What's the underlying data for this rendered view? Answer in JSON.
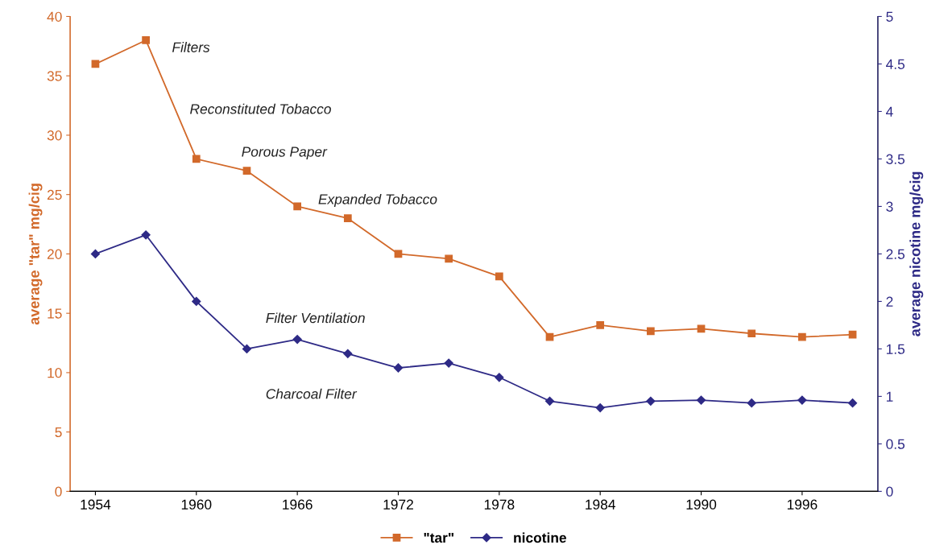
{
  "chart_data": {
    "type": "line",
    "x": [
      1954,
      1957,
      1960,
      1963,
      1966,
      1969,
      1972,
      1975,
      1978,
      1981,
      1984,
      1987,
      1990,
      1993,
      1996,
      1999
    ],
    "series": [
      {
        "name": "\"tar\"",
        "color": "#d2692a",
        "marker": "square",
        "values": [
          36,
          38,
          28,
          27,
          24,
          23,
          20,
          19.6,
          18.1,
          13,
          14,
          13.5,
          13.7,
          13.3,
          13,
          13.2
        ]
      },
      {
        "name": "nicotine",
        "color": "#2e2a86",
        "marker": "diamond",
        "axis": "y2",
        "values": [
          2.5,
          2.7,
          2.0,
          1.5,
          1.6,
          1.45,
          1.3,
          1.35,
          1.2,
          0.95,
          0.88,
          0.95,
          0.96,
          0.93,
          0.96,
          0.93
        ]
      }
    ],
    "ylabel": "average \"tar\" mg/cig",
    "y2label": "average nicotine mg/cig",
    "xlim": [
      1952.5,
      2000.5
    ],
    "xticks": [
      1954,
      1960,
      1966,
      1972,
      1978,
      1984,
      1990,
      1996
    ],
    "ylim": [
      0,
      40
    ],
    "yticks": [
      0,
      5,
      10,
      15,
      20,
      25,
      30,
      35,
      40
    ],
    "y2lim": [
      0,
      5
    ],
    "y2ticks": [
      0,
      {
        "value": 0.5,
        "label": "0.5"
      },
      1,
      {
        "value": 1.5,
        "label": "1.5"
      },
      2,
      {
        "value": 2.5,
        "label": "2.5"
      },
      3,
      {
        "value": 3.5,
        "label": "3.5"
      },
      4,
      {
        "value": 4.5,
        "label": "4.5"
      },
      5
    ],
    "annotations": [
      "Filters",
      "Reconstituted Tobacco",
      "Porous Paper",
      "Expanded Tobacco",
      "Filter Ventilation",
      "Charcoal Filter"
    ],
    "grid": false,
    "legend": "bottom",
    "line_style": "solid"
  }
}
